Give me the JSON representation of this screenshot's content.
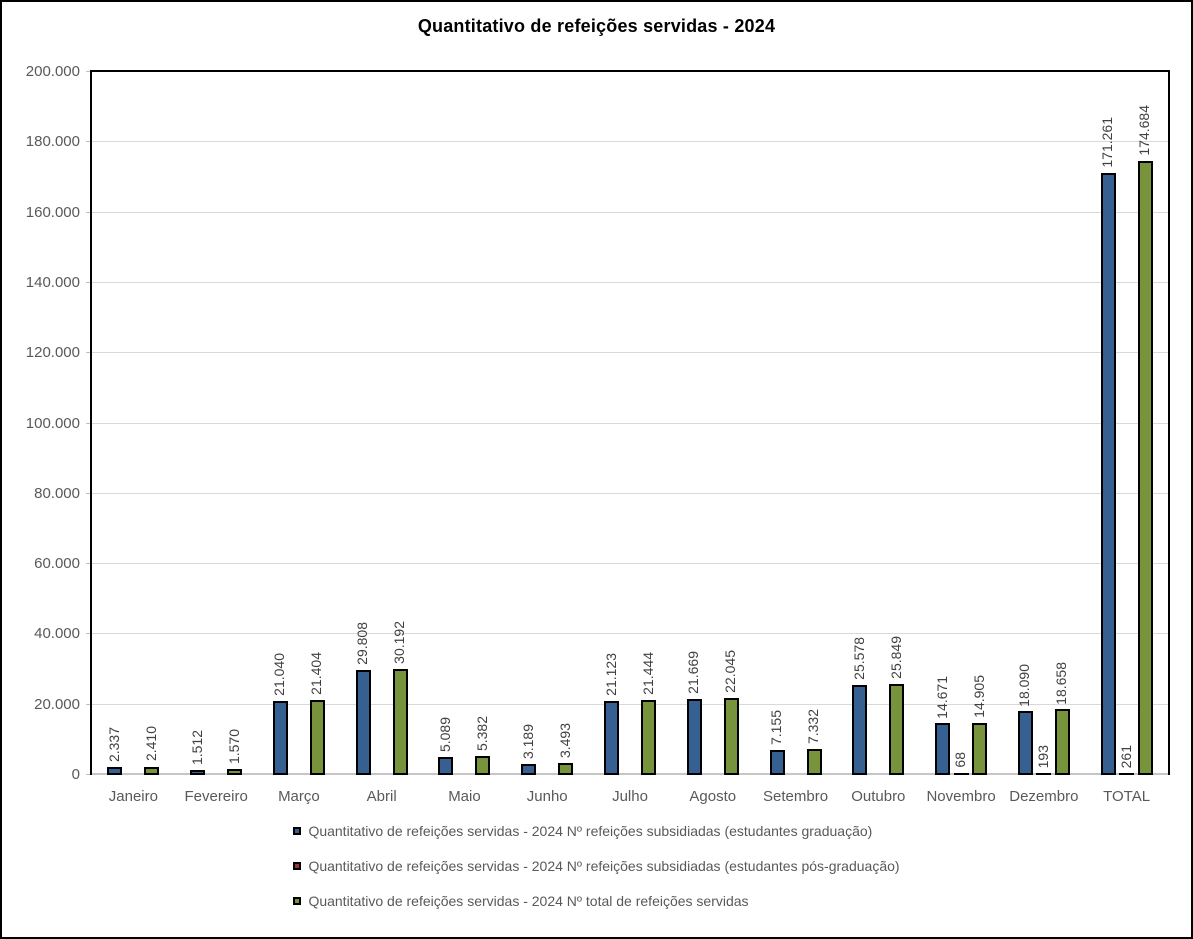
{
  "title": "Quantitativo de refeições servidas - 2024",
  "chart_data": {
    "type": "bar",
    "title": "Quantitativo de refeições servidas - 2024",
    "categories": [
      "Janeiro",
      "Fevereiro",
      "Março",
      "Abril",
      "Maio",
      "Junho",
      "Julho",
      "Agosto",
      "Setembro",
      "Outubro",
      "Novembro",
      "Dezembro",
      "TOTAL"
    ],
    "series": [
      {
        "name": "Quantitativo de refeições servidas - 2024 Nº refeições subsidiadas (estudantes graduação)",
        "color": "#376092",
        "values": [
          2337,
          1512,
          21040,
          29808,
          5089,
          3189,
          21123,
          21669,
          7155,
          25578,
          14671,
          18090,
          171261
        ],
        "labels": [
          "2.337",
          "1.512",
          "21.040",
          "29.808",
          "5.089",
          "3.189",
          "21.123",
          "21.669",
          "7.155",
          "25.578",
          "14.671",
          "18.090",
          "171.261"
        ]
      },
      {
        "name": "Quantitativo de refeições servidas - 2024 Nº refeições subsidiadas (estudantes pós-graduação)",
        "color": "#953735",
        "values": [
          0,
          0,
          0,
          0,
          0,
          0,
          0,
          0,
          0,
          0,
          68,
          193,
          261
        ],
        "labels": [
          null,
          null,
          null,
          null,
          null,
          null,
          null,
          null,
          null,
          null,
          "68",
          "193",
          "261"
        ]
      },
      {
        "name": "Quantitativo de refeições servidas - 2024 Nº total de refeições servidas",
        "color": "#77933C",
        "values": [
          2410,
          1570,
          21404,
          30192,
          5382,
          3493,
          21444,
          22045,
          7332,
          25849,
          14905,
          18658,
          174684
        ],
        "labels": [
          "2.410",
          "1.570",
          "21.404",
          "30.192",
          "5.382",
          "3.493",
          "21.444",
          "22.045",
          "7.332",
          "25.849",
          "14.905",
          "18.658",
          "174.684"
        ]
      }
    ],
    "ylim": [
      0,
      200000
    ],
    "yticks": [
      0,
      20000,
      40000,
      60000,
      80000,
      100000,
      120000,
      140000,
      160000,
      180000,
      200000
    ],
    "ytick_labels": [
      "0",
      "20.000",
      "40.000",
      "60.000",
      "80.000",
      "100.000",
      "120.000",
      "140.000",
      "160.000",
      "180.000",
      "200.000"
    ],
    "grid": true,
    "legend_position": "bottom",
    "value_label_rotation": 90
  },
  "colors": {
    "series_blue": "#376092",
    "series_red": "#953735",
    "series_green": "#77933C",
    "bar_border": "#000000",
    "gridline": "#D9D9D9",
    "axis_line": "#C6C6C6",
    "axis_text": "#595959",
    "data_label_text": "#404040",
    "title_text": "#000000"
  }
}
